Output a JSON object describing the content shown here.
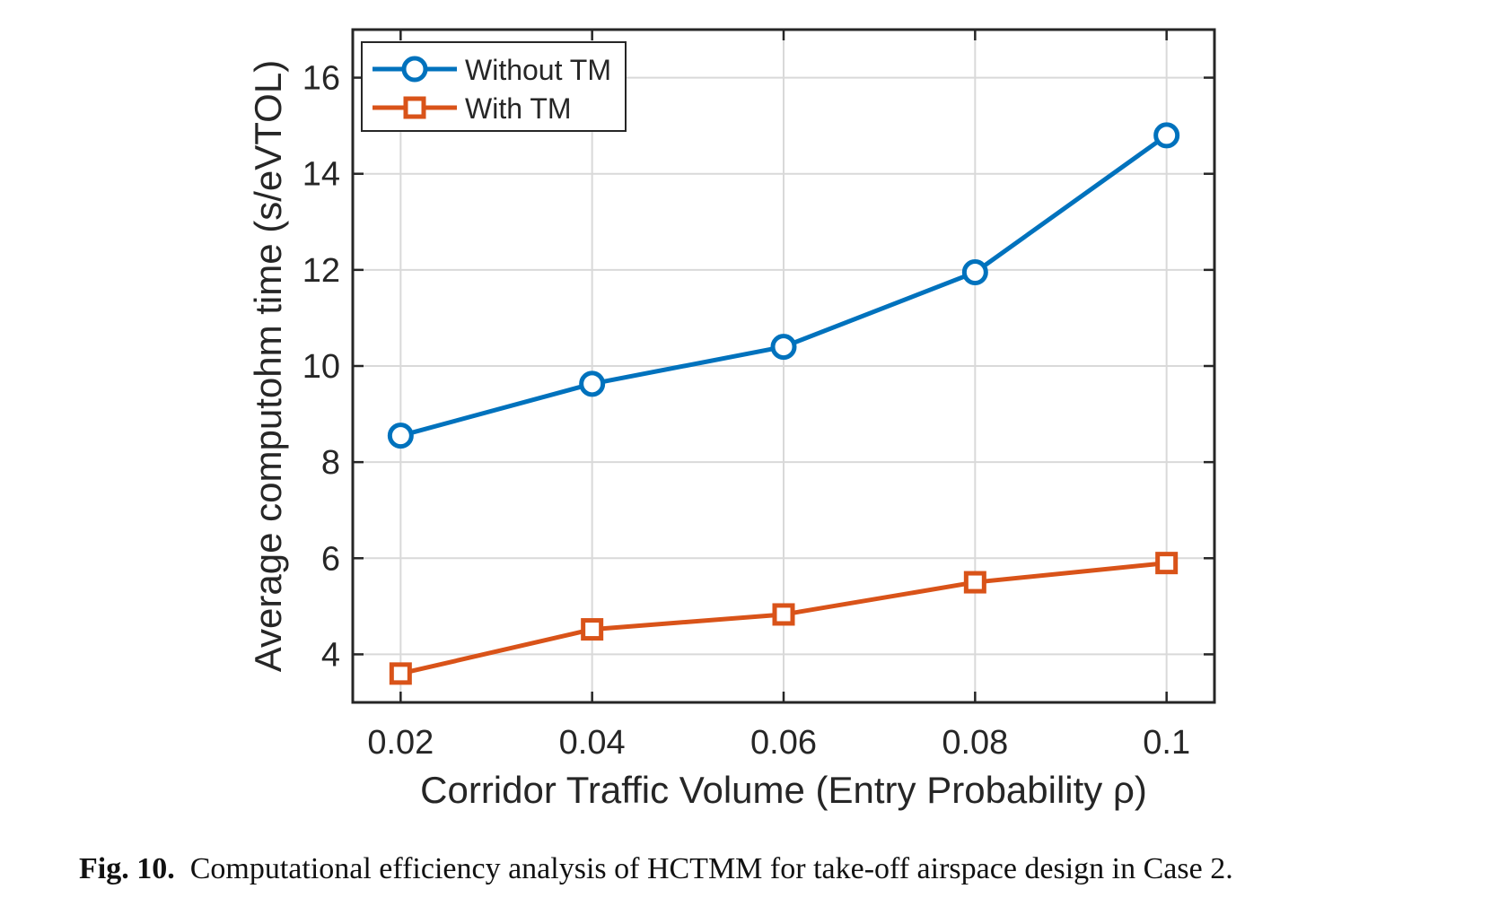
{
  "chart_data": {
    "type": "line",
    "x": [
      0.02,
      0.04,
      0.06,
      0.08,
      0.1
    ],
    "x_tick_labels": [
      "0.02",
      "0.04",
      "0.06",
      "0.08",
      "0.1"
    ],
    "y_ticks": [
      4,
      6,
      8,
      10,
      12,
      14,
      16
    ],
    "y_tick_labels": [
      "4",
      "6",
      "8",
      "10",
      "12",
      "14",
      "16"
    ],
    "xlim": [
      0.015,
      0.105
    ],
    "ylim": [
      3,
      17
    ],
    "grid": true,
    "legend_position": "top-left",
    "xlabel": "Corridor Traffic Volume (Entry Probability ρ)",
    "ylabel": "Average computohm time (s/eVTOL)",
    "series": [
      {
        "name": "Without TM",
        "values": [
          8.55,
          9.63,
          10.4,
          11.95,
          14.8
        ],
        "color": "#0072BD",
        "marker": "circle"
      },
      {
        "name": "With TM",
        "values": [
          3.6,
          4.52,
          4.83,
          5.5,
          5.9
        ],
        "color": "#D95319",
        "marker": "square"
      }
    ]
  },
  "caption": {
    "label": "Fig. 10.",
    "text": "Computational efficiency analysis of HCTMM for take-off airspace design in Case 2."
  },
  "colors": {
    "axis": "#262626",
    "grid": "#d9d9d9",
    "background": "#ffffff"
  }
}
